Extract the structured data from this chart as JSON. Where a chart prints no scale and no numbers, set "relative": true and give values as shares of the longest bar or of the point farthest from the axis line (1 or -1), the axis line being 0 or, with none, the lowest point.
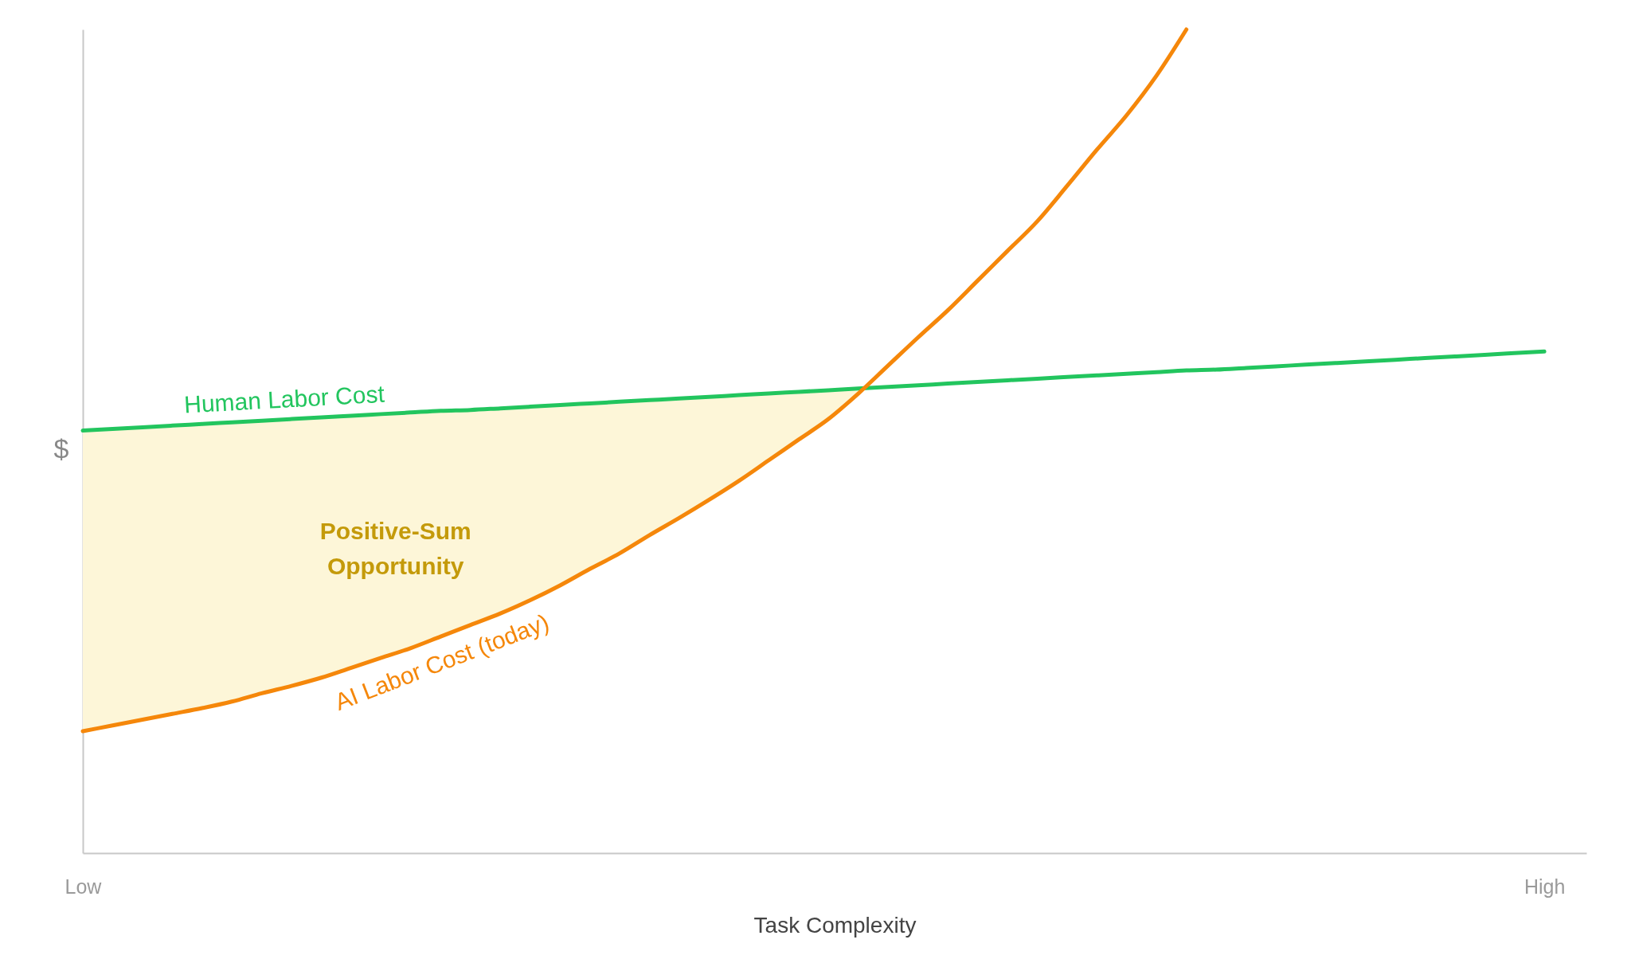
{
  "chart_data": {
    "type": "line",
    "relative": true,
    "xlabel": "Task Complexity",
    "ylabel": "$",
    "grid": false,
    "legend": false,
    "marker": "none",
    "line_style": "solid",
    "categories": [
      "Low",
      null,
      null,
      null,
      null,
      null,
      null,
      null,
      null,
      null,
      null,
      null,
      null,
      null,
      null,
      null,
      null,
      null,
      null,
      null,
      null,
      null,
      null,
      null,
      null,
      null,
      null,
      null,
      null,
      null,
      null,
      null,
      null,
      null,
      null,
      null,
      null,
      null,
      null,
      null,
      null,
      null,
      null,
      null,
      null,
      null,
      null,
      null,
      null,
      "High"
    ],
    "series": [
      {
        "type": "area",
        "color": "#fdf6d8",
        "values": [
          0.513,
          0.515,
          0.517,
          0.519,
          0.521,
          0.523,
          0.525,
          0.527,
          0.529,
          0.531,
          0.533,
          0.535,
          0.537,
          0.538,
          0.54,
          0.542,
          0.544,
          0.546,
          0.548,
          0.55,
          0.552,
          0.554,
          0.556,
          0.558,
          0.56,
          0.562,
          0.564,
          null,
          null,
          null,
          null,
          null,
          null,
          null,
          null,
          null,
          null,
          null,
          null,
          null,
          null,
          null,
          null,
          null,
          null,
          null,
          null,
          null,
          null,
          null
        ]
      },
      {
        "name": "Human Labor Cost",
        "color": "#22c55e",
        "values": [
          0.513,
          0.515,
          0.517,
          0.519,
          0.521,
          0.523,
          0.525,
          0.527,
          0.529,
          0.531,
          0.533,
          0.535,
          0.537,
          0.538,
          0.54,
          0.542,
          0.544,
          0.546,
          0.548,
          0.55,
          0.552,
          0.554,
          0.556,
          0.558,
          0.56,
          0.562,
          0.564,
          0.566,
          0.568,
          0.57,
          0.572,
          0.574,
          0.576,
          0.578,
          0.58,
          0.582,
          0.584,
          0.586,
          0.587,
          0.589,
          0.591,
          0.593,
          0.595,
          0.597,
          0.599,
          0.601,
          0.603,
          0.605,
          0.607,
          0.609
        ]
      },
      {
        "name": "AI Labor Cost (today)",
        "color": "#f5870a",
        "values": [
          0.148,
          0.155,
          0.162,
          0.169,
          0.176,
          0.184,
          0.194,
          0.203,
          0.213,
          0.225,
          0.237,
          0.249,
          0.263,
          0.277,
          0.291,
          0.307,
          0.325,
          0.345,
          0.364,
          0.386,
          0.407,
          0.429,
          0.452,
          0.477,
          0.502,
          0.527,
          0.558,
          0.592,
          0.626,
          0.659,
          0.695,
          0.731,
          0.767,
          0.81,
          0.854,
          0.896,
          0.944,
          1.0,
          null,
          null,
          null,
          null,
          null,
          null,
          null,
          null,
          null,
          null,
          null,
          null
        ]
      }
    ],
    "annotations": [
      "Positive-Sum Opportunity"
    ]
  }
}
